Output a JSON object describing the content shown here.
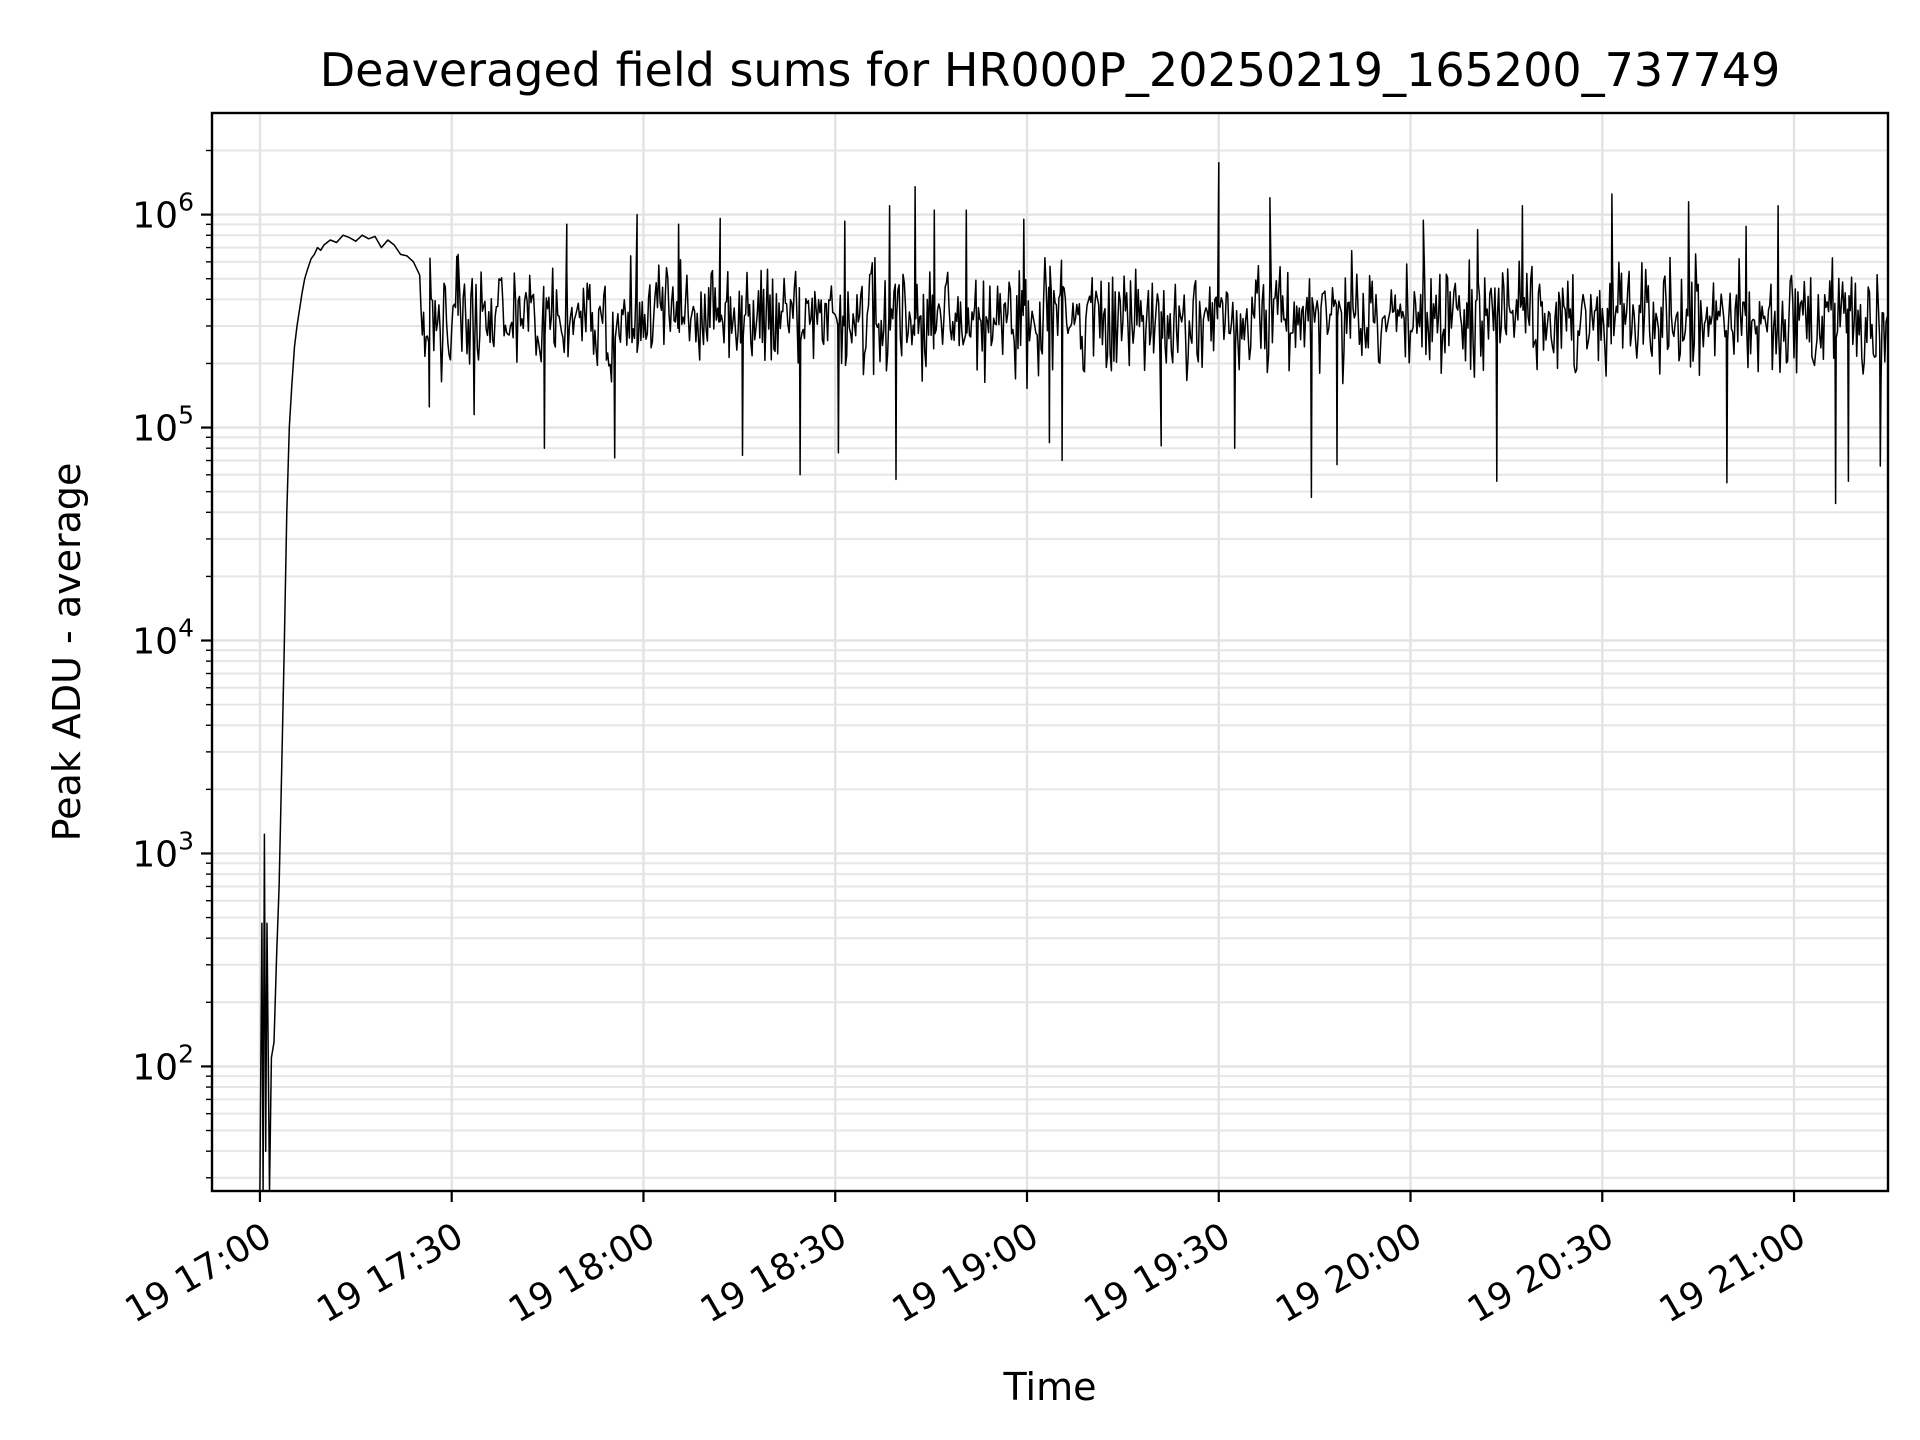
{
  "chart_data": {
    "type": "line",
    "title": "Deaveraged field sums for HR000P_20250219_165200_737749",
    "xlabel": "Time",
    "ylabel": "Peak ADU - average",
    "yscale": "log",
    "grid": true,
    "x_unit": "minutes after 19 17:00",
    "xlim": [
      -7.5,
      254.7
    ],
    "ylim": [
      26,
      3000000
    ],
    "x_ticks": [
      {
        "label": "19 17:00",
        "value": 0
      },
      {
        "label": "19 17:30",
        "value": 30
      },
      {
        "label": "19 18:00",
        "value": 60
      },
      {
        "label": "19 18:30",
        "value": 90
      },
      {
        "label": "19 19:00",
        "value": 120
      },
      {
        "label": "19 19:30",
        "value": 150
      },
      {
        "label": "19 20:00",
        "value": 180
      },
      {
        "label": "19 20:30",
        "value": 210
      },
      {
        "label": "19 21:00",
        "value": 240
      }
    ],
    "y_ticks": [
      {
        "base": "10",
        "exp": "2",
        "value": 100
      },
      {
        "base": "10",
        "exp": "3",
        "value": 1000
      },
      {
        "base": "10",
        "exp": "4",
        "value": 10000
      },
      {
        "base": "10",
        "exp": "5",
        "value": 100000
      },
      {
        "base": "10",
        "exp": "6",
        "value": 1000000
      }
    ],
    "series": [
      {
        "color": "#000000",
        "ramp": {
          "x": [
            0.0,
            0.3,
            0.5,
            0.7,
            0.9,
            1.1,
            1.5,
            1.8,
            2.2,
            2.6,
            3.0,
            3.4,
            3.8,
            4.2,
            4.6,
            5.0,
            5.4,
            5.8,
            6.2,
            6.6,
            7.0,
            7.5,
            8.0,
            8.5,
            9.0,
            9.5,
            10.0,
            11.0,
            12.0,
            13.0,
            14.0,
            15.0,
            16.0,
            17.0,
            18.0,
            19.0,
            20.0,
            21.0,
            22.0,
            23.0,
            24.0,
            25.0
          ],
          "y": [
            26,
            470,
            26,
            1230,
            40,
            470,
            26,
            110,
            130,
            330,
            700,
            2500,
            9000,
            40000,
            100000,
            160000,
            240000,
            300000,
            360000,
            430000,
            500000,
            560000,
            620000,
            650000,
            700000,
            680000,
            720000,
            760000,
            740000,
            800000,
            780000,
            750000,
            800000,
            770000,
            790000,
            700000,
            760000,
            720000,
            650000,
            640000,
            600000,
            520000
          ]
        },
        "noise": {
          "x_start": 25.0,
          "x_end": 254.7,
          "step": 0.2,
          "median": 320000,
          "low": 110000,
          "high": 800000,
          "seed": 737749
        },
        "spikes": [
          {
            "x": 26.5,
            "y": 125000
          },
          {
            "x": 31.0,
            "y": 650000
          },
          {
            "x": 33.5,
            "y": 115000
          },
          {
            "x": 44.5,
            "y": 80000
          },
          {
            "x": 48.0,
            "y": 900000
          },
          {
            "x": 55.5,
            "y": 72000
          },
          {
            "x": 59.0,
            "y": 1000000
          },
          {
            "x": 65.5,
            "y": 900000
          },
          {
            "x": 72.0,
            "y": 960000
          },
          {
            "x": 75.5,
            "y": 74000
          },
          {
            "x": 84.5,
            "y": 60000
          },
          {
            "x": 90.5,
            "y": 76000
          },
          {
            "x": 91.5,
            "y": 930000
          },
          {
            "x": 98.5,
            "y": 1100000
          },
          {
            "x": 99.5,
            "y": 57000
          },
          {
            "x": 102.5,
            "y": 1350000
          },
          {
            "x": 105.5,
            "y": 1050000
          },
          {
            "x": 110.5,
            "y": 1050000
          },
          {
            "x": 119.5,
            "y": 950000
          },
          {
            "x": 123.5,
            "y": 85000
          },
          {
            "x": 125.5,
            "y": 70000
          },
          {
            "x": 141.0,
            "y": 82000
          },
          {
            "x": 150.0,
            "y": 1750000
          },
          {
            "x": 152.5,
            "y": 80000
          },
          {
            "x": 158.0,
            "y": 1200000
          },
          {
            "x": 164.5,
            "y": 47000
          },
          {
            "x": 168.5,
            "y": 67000
          },
          {
            "x": 182.0,
            "y": 940000
          },
          {
            "x": 190.5,
            "y": 850000
          },
          {
            "x": 193.5,
            "y": 56000
          },
          {
            "x": 197.5,
            "y": 1100000
          },
          {
            "x": 211.5,
            "y": 1250000
          },
          {
            "x": 223.5,
            "y": 1150000
          },
          {
            "x": 229.5,
            "y": 55000
          },
          {
            "x": 232.5,
            "y": 880000
          },
          {
            "x": 237.5,
            "y": 1100000
          },
          {
            "x": 246.5,
            "y": 44000
          },
          {
            "x": 248.5,
            "y": 56000
          },
          {
            "x": 253.5,
            "y": 66000
          }
        ]
      }
    ]
  }
}
